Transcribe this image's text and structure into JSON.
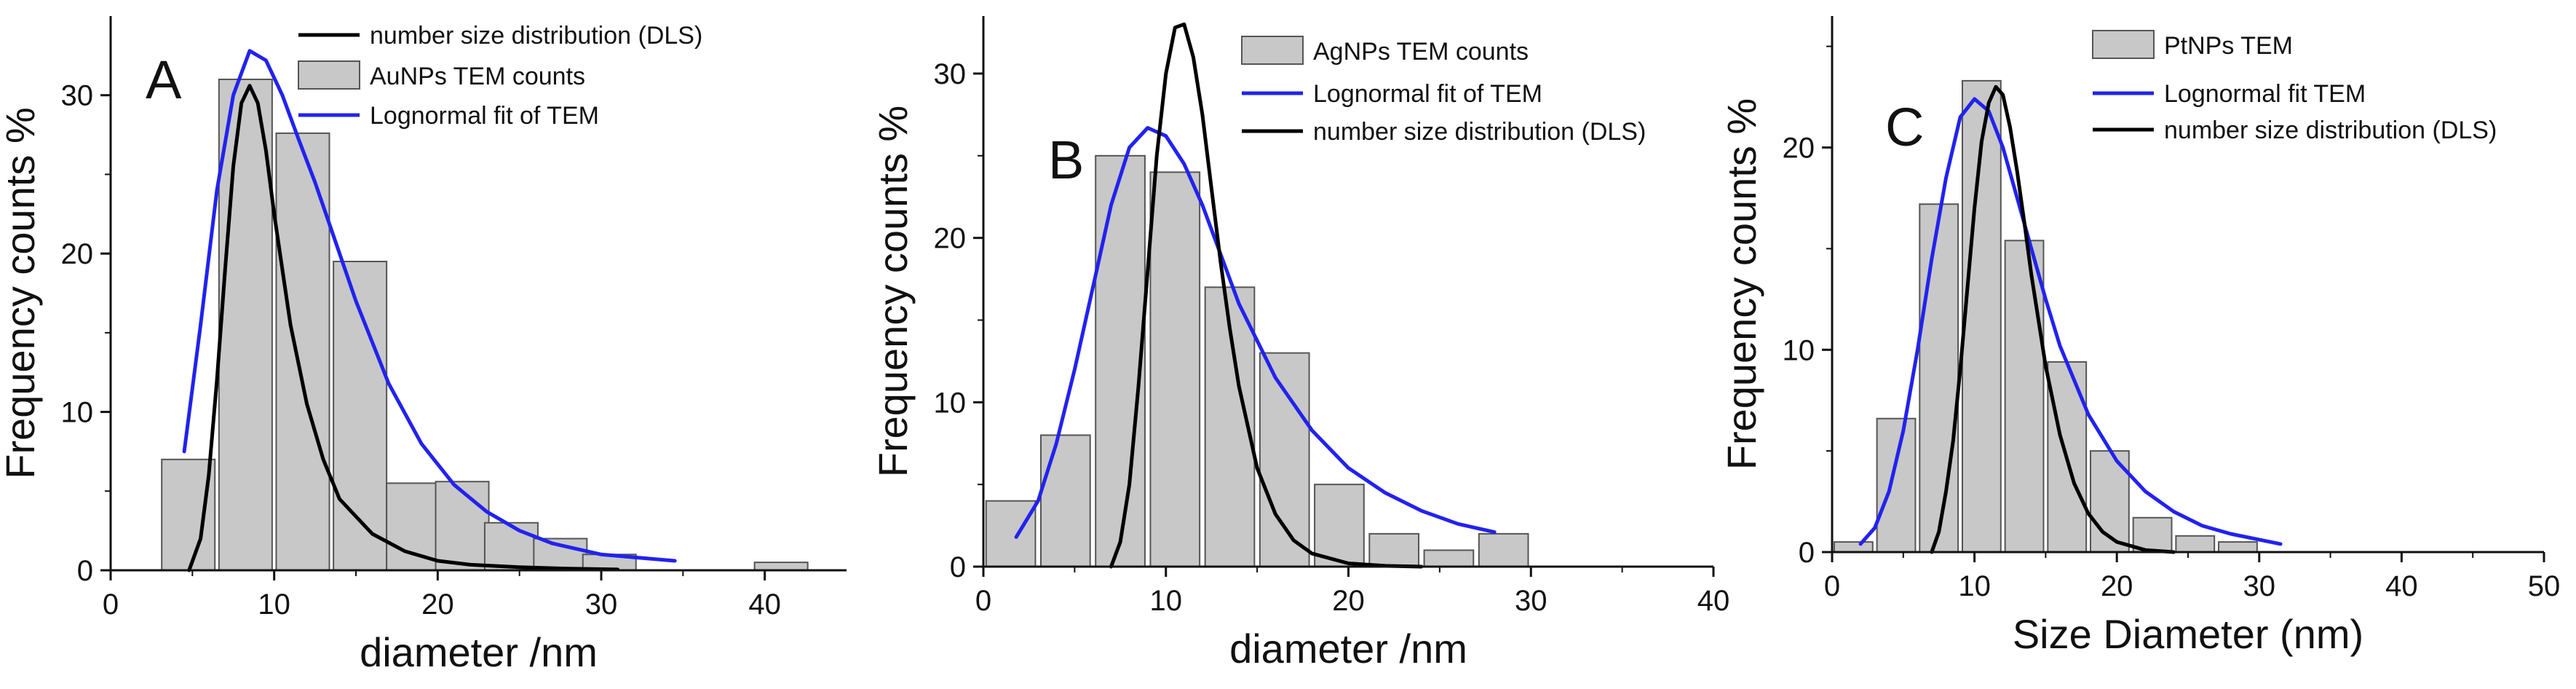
{
  "chart_data": [
    {
      "type": "bar",
      "panel_label": "A",
      "xlabel": "diameter /nm",
      "ylabel": "Frequency counts %",
      "xlim": [
        0,
        45
      ],
      "ylim": [
        0,
        35
      ],
      "xticks": [
        0,
        10,
        20,
        30,
        40
      ],
      "yticks": [
        0,
        10,
        20,
        30
      ],
      "legend_position": "top",
      "series": [
        {
          "name": "AuNPs TEM counts",
          "kind": "histogram",
          "color": "#c8c8c8",
          "bars": [
            {
              "x": 4.75,
              "value": 7.0
            },
            {
              "x": 8.25,
              "value": 31.0
            },
            {
              "x": 11.75,
              "value": 27.6
            },
            {
              "x": 15.25,
              "value": 19.5
            },
            {
              "x": 18.5,
              "value": 5.5
            },
            {
              "x": 21.5,
              "value": 5.6
            },
            {
              "x": 24.5,
              "value": 3.0
            },
            {
              "x": 27.5,
              "value": 2.0
            },
            {
              "x": 30.5,
              "value": 1.0
            },
            {
              "x": 41.0,
              "value": 0.5
            }
          ]
        },
        {
          "name": "number size distribution (DLS)",
          "kind": "line",
          "color": "#000000",
          "x": [
            4.8,
            5.5,
            6.0,
            6.5,
            7.0,
            7.5,
            8.0,
            8.5,
            9.0,
            9.5,
            10,
            11,
            12,
            13,
            14,
            16,
            18,
            20,
            22,
            25,
            28,
            31
          ],
          "y": [
            0,
            2,
            6,
            12,
            19,
            25.5,
            29.5,
            30.6,
            29.5,
            26.5,
            22.5,
            15.5,
            10.5,
            7.0,
            4.5,
            2.3,
            1.2,
            0.6,
            0.35,
            0.2,
            0.1,
            0.05
          ]
        },
        {
          "name": "Lognormal fit of TEM",
          "kind": "line",
          "color": "#2222ee",
          "x": [
            4.5,
            5.5,
            6.5,
            7.5,
            8.5,
            9.5,
            10.5,
            11.5,
            12.5,
            13.5,
            15,
            17,
            19,
            21,
            23,
            25,
            27,
            30,
            34.5
          ],
          "y": [
            7.5,
            15.5,
            24,
            30,
            32.8,
            32.2,
            30.0,
            27.2,
            24.5,
            21.5,
            17.0,
            11.8,
            8.0,
            5.4,
            3.7,
            2.5,
            1.7,
            1.0,
            0.6
          ]
        }
      ]
    },
    {
      "type": "bar",
      "panel_label": "B",
      "xlabel": "diameter /nm",
      "ylabel": "Frequency counts %",
      "xlim": [
        0,
        40
      ],
      "ylim": [
        0,
        33.5
      ],
      "xticks": [
        0,
        10,
        20,
        30,
        40
      ],
      "yticks": [
        0,
        10,
        20,
        30
      ],
      "legend_position": "top",
      "series": [
        {
          "name": "AgNPs TEM counts",
          "kind": "histogram",
          "color": "#c8c8c8",
          "bars": [
            {
              "x": 1.5,
              "value": 4.0
            },
            {
              "x": 4.5,
              "value": 8.0
            },
            {
              "x": 7.5,
              "value": 25.0
            },
            {
              "x": 10.5,
              "value": 24.0
            },
            {
              "x": 13.5,
              "value": 17.0
            },
            {
              "x": 16.5,
              "value": 13.0
            },
            {
              "x": 19.5,
              "value": 5.0
            },
            {
              "x": 22.5,
              "value": 2.0
            },
            {
              "x": 25.5,
              "value": 1.0
            },
            {
              "x": 28.5,
              "value": 2.0
            }
          ]
        },
        {
          "name": "Lognormal fit of TEM",
          "kind": "line",
          "color": "#2222ee",
          "x": [
            1.8,
            3,
            4,
            5,
            6,
            7,
            8,
            9,
            10,
            11,
            12,
            13,
            14,
            16,
            18,
            20,
            22,
            24,
            26,
            28
          ],
          "y": [
            1.8,
            4,
            7.5,
            12,
            17,
            22,
            25.5,
            26.7,
            26.2,
            24.5,
            22.0,
            19.0,
            16.0,
            11.5,
            8.3,
            6.0,
            4.5,
            3.4,
            2.6,
            2.1
          ]
        },
        {
          "name": "number size distribution (DLS)",
          "kind": "line",
          "color": "#000000",
          "x": [
            7.0,
            7.5,
            8,
            8.5,
            9,
            9.5,
            10,
            10.5,
            11,
            11.5,
            12,
            12.5,
            13,
            13.5,
            14,
            15,
            16,
            17,
            18,
            20,
            22,
            24
          ],
          "y": [
            0,
            1.5,
            5,
            11,
            18,
            25,
            30,
            32.8,
            33.0,
            31.0,
            27.5,
            23.0,
            18.5,
            14.5,
            11.0,
            6.0,
            3.2,
            1.6,
            0.8,
            0.2,
            0.05,
            0
          ]
        }
      ]
    },
    {
      "type": "bar",
      "panel_label": "C",
      "xlabel": "Size Diameter (nm)",
      "ylabel": "Frequency counts %",
      "xlim": [
        0,
        50
      ],
      "ylim": [
        0,
        26.5
      ],
      "xticks": [
        0,
        10,
        20,
        30,
        40,
        50
      ],
      "yticks": [
        0,
        10,
        20
      ],
      "legend_position": "top",
      "series": [
        {
          "name": "PtNPs TEM",
          "kind": "histogram",
          "color": "#c8c8c8",
          "bars": [
            {
              "x": 1.5,
              "value": 0.5
            },
            {
              "x": 4.5,
              "value": 6.6
            },
            {
              "x": 7.5,
              "value": 17.2
            },
            {
              "x": 10.5,
              "value": 23.3
            },
            {
              "x": 13.5,
              "value": 15.4
            },
            {
              "x": 16.5,
              "value": 9.4
            },
            {
              "x": 19.5,
              "value": 5.0
            },
            {
              "x": 22.5,
              "value": 1.7
            },
            {
              "x": 25.5,
              "value": 0.8
            },
            {
              "x": 28.5,
              "value": 0.5
            }
          ]
        },
        {
          "name": "Lognormal fit TEM",
          "kind": "line",
          "color": "#2222ee",
          "x": [
            2,
            3,
            4,
            5,
            6,
            7,
            8,
            9,
            10,
            11,
            12,
            13,
            14,
            15,
            16,
            18,
            20,
            22,
            24,
            26,
            28,
            31.5
          ],
          "y": [
            0.4,
            1.2,
            3,
            6,
            10,
            14.5,
            18.5,
            21.5,
            22.4,
            21.8,
            20.0,
            17.5,
            15.0,
            12.5,
            10.2,
            6.8,
            4.5,
            3.0,
            2.0,
            1.3,
            0.9,
            0.4
          ]
        },
        {
          "name": "number size distribution (DLS)",
          "kind": "line",
          "color": "#000000",
          "x": [
            7,
            7.5,
            8,
            8.5,
            9,
            9.5,
            10,
            10.5,
            11,
            11.5,
            12,
            12.5,
            13,
            13.5,
            14,
            15,
            16,
            17,
            18,
            19,
            20,
            22,
            24
          ],
          "y": [
            0,
            1,
            3,
            5.5,
            9,
            13,
            17,
            20.3,
            22.2,
            23.0,
            22.6,
            21.0,
            18.8,
            16.3,
            13.7,
            9.2,
            5.8,
            3.4,
            1.9,
            1.0,
            0.5,
            0.1,
            0
          ]
        }
      ]
    }
  ]
}
